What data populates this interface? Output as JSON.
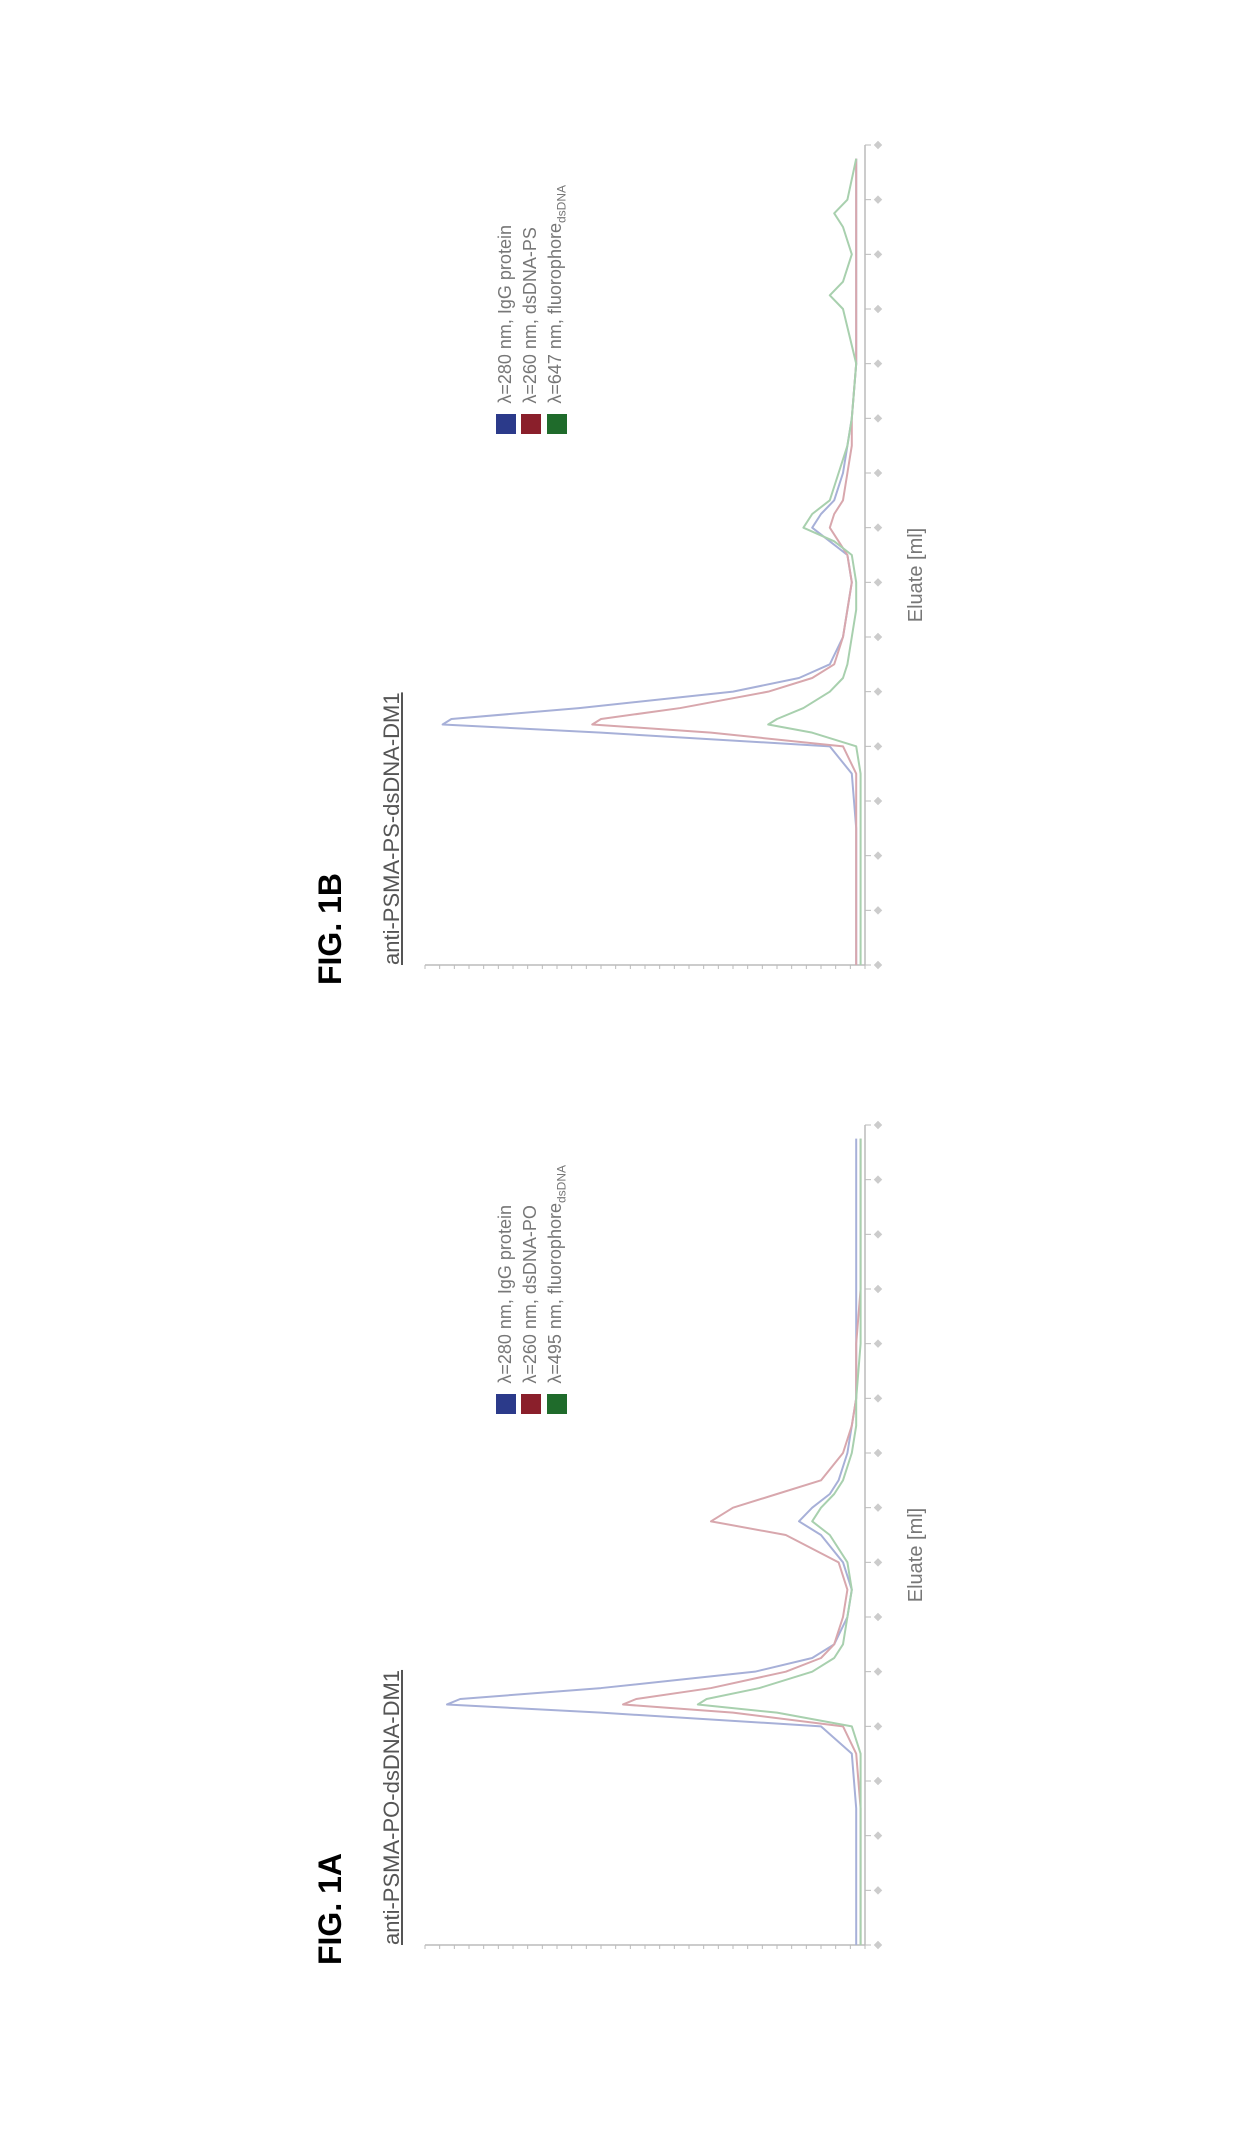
{
  "panelA": {
    "fig_label": "FIG. 1A",
    "title": "anti-PSMA-PO-dsDNA-DM1",
    "x_label": "Eluate [ml]",
    "legend": [
      {
        "color": "#2b3a8a",
        "label_prefix": "λ=280 nm, ",
        "label_tail": "IgG protein"
      },
      {
        "color": "#8a1f2b",
        "label_prefix": "λ=260 nm, ",
        "label_tail": "dsDNA-PO"
      },
      {
        "color": "#1f6b2b",
        "label_prefix": "λ=495 nm, ",
        "label_tail": "fluorophore",
        "label_sub": "dsDNA"
      }
    ],
    "chart": {
      "x_domain": [
        0,
        30
      ],
      "y_domain": [
        0,
        100
      ],
      "x_ticks": [
        0,
        2,
        4,
        6,
        8,
        10,
        12,
        14,
        16,
        18,
        20,
        22,
        24,
        26,
        28,
        30
      ],
      "series": [
        {
          "color": "#a7b0d8",
          "points": [
            [
              0,
              2
            ],
            [
              5,
              2
            ],
            [
              7,
              3
            ],
            [
              8,
              10
            ],
            [
              8.5,
              60
            ],
            [
              8.8,
              95
            ],
            [
              9,
              92
            ],
            [
              9.4,
              60
            ],
            [
              10,
              25
            ],
            [
              10.5,
              12
            ],
            [
              11,
              7
            ],
            [
              12,
              4
            ],
            [
              13,
              3
            ],
            [
              14,
              5
            ],
            [
              15,
              10
            ],
            [
              15.5,
              15
            ],
            [
              16,
              12
            ],
            [
              16.5,
              8
            ],
            [
              17,
              6
            ],
            [
              18,
              4
            ],
            [
              19,
              3
            ],
            [
              20,
              2
            ],
            [
              22,
              2
            ],
            [
              24,
              2
            ],
            [
              26,
              2
            ],
            [
              28,
              2
            ],
            [
              29.5,
              2
            ]
          ]
        },
        {
          "color": "#d8a7ad",
          "points": [
            [
              0,
              1
            ],
            [
              5,
              1
            ],
            [
              7,
              2
            ],
            [
              8,
              5
            ],
            [
              8.5,
              30
            ],
            [
              8.8,
              55
            ],
            [
              9,
              52
            ],
            [
              9.4,
              35
            ],
            [
              10,
              18
            ],
            [
              10.5,
              10
            ],
            [
              11,
              7
            ],
            [
              12,
              5
            ],
            [
              13,
              4
            ],
            [
              14,
              6
            ],
            [
              15,
              18
            ],
            [
              15.5,
              35
            ],
            [
              16,
              30
            ],
            [
              16.5,
              20
            ],
            [
              17,
              10
            ],
            [
              18,
              5
            ],
            [
              19,
              3
            ],
            [
              20,
              2
            ],
            [
              22,
              2
            ],
            [
              24,
              1
            ],
            [
              26,
              1
            ],
            [
              28,
              1
            ],
            [
              29.5,
              1
            ]
          ]
        },
        {
          "color": "#a8d0ae",
          "points": [
            [
              0,
              1
            ],
            [
              5,
              1
            ],
            [
              7,
              1
            ],
            [
              8,
              3
            ],
            [
              8.5,
              20
            ],
            [
              8.8,
              38
            ],
            [
              9,
              36
            ],
            [
              9.4,
              24
            ],
            [
              10,
              12
            ],
            [
              10.5,
              7
            ],
            [
              11,
              5
            ],
            [
              12,
              4
            ],
            [
              13,
              3
            ],
            [
              14,
              4
            ],
            [
              15,
              8
            ],
            [
              15.5,
              12
            ],
            [
              16,
              10
            ],
            [
              16.5,
              7
            ],
            [
              17,
              5
            ],
            [
              18,
              3
            ],
            [
              19,
              2
            ],
            [
              20,
              2
            ],
            [
              22,
              1
            ],
            [
              24,
              1
            ],
            [
              26,
              1
            ],
            [
              28,
              1
            ],
            [
              29.5,
              1
            ]
          ]
        }
      ]
    }
  },
  "panelB": {
    "fig_label": "FIG. 1B",
    "title": "anti-PSMA-PS-dsDNA-DM1",
    "x_label": "Eluate [ml]",
    "legend": [
      {
        "color": "#2b3a8a",
        "label_prefix": "λ=280 nm, ",
        "label_tail": "IgG protein"
      },
      {
        "color": "#8a1f2b",
        "label_prefix": "λ=260 nm, ",
        "label_tail": "dsDNA-PS"
      },
      {
        "color": "#1f6b2b",
        "label_prefix": "λ=647 nm, ",
        "label_tail": "fluorophore",
        "label_sub": "dsDNA"
      }
    ],
    "chart": {
      "x_domain": [
        0,
        30
      ],
      "y_domain": [
        0,
        100
      ],
      "x_ticks": [
        0,
        2,
        4,
        6,
        8,
        10,
        12,
        14,
        16,
        18,
        20,
        22,
        24,
        26,
        28,
        30
      ],
      "series": [
        {
          "color": "#a7b0d8",
          "points": [
            [
              0,
              2
            ],
            [
              5,
              2
            ],
            [
              7,
              3
            ],
            [
              8,
              8
            ],
            [
              8.5,
              60
            ],
            [
              8.8,
              96
            ],
            [
              9,
              94
            ],
            [
              9.4,
              65
            ],
            [
              10,
              30
            ],
            [
              10.5,
              15
            ],
            [
              11,
              8
            ],
            [
              12,
              5
            ],
            [
              13,
              4
            ],
            [
              14,
              3
            ],
            [
              15,
              4
            ],
            [
              15.5,
              8
            ],
            [
              16,
              12
            ],
            [
              16.5,
              10
            ],
            [
              17,
              7
            ],
            [
              18,
              5
            ],
            [
              19,
              4
            ],
            [
              20,
              3
            ],
            [
              22,
              2
            ],
            [
              24,
              2
            ],
            [
              26,
              2
            ],
            [
              28,
              2
            ],
            [
              29.5,
              2
            ]
          ]
        },
        {
          "color": "#d8a7ad",
          "points": [
            [
              0,
              2
            ],
            [
              5,
              2
            ],
            [
              7,
              2
            ],
            [
              8,
              5
            ],
            [
              8.5,
              35
            ],
            [
              8.8,
              62
            ],
            [
              9,
              60
            ],
            [
              9.4,
              42
            ],
            [
              10,
              22
            ],
            [
              10.5,
              12
            ],
            [
              11,
              7
            ],
            [
              12,
              5
            ],
            [
              13,
              4
            ],
            [
              14,
              3
            ],
            [
              15,
              4
            ],
            [
              15.5,
              6
            ],
            [
              16,
              8
            ],
            [
              16.5,
              7
            ],
            [
              17,
              5
            ],
            [
              18,
              4
            ],
            [
              19,
              3
            ],
            [
              20,
              3
            ],
            [
              22,
              2
            ],
            [
              24,
              2
            ],
            [
              26,
              2
            ],
            [
              28,
              2
            ],
            [
              29.5,
              2
            ]
          ]
        },
        {
          "color": "#a8d0ae",
          "points": [
            [
              0,
              1
            ],
            [
              5,
              1
            ],
            [
              7,
              1
            ],
            [
              8,
              2
            ],
            [
              8.5,
              12
            ],
            [
              8.8,
              22
            ],
            [
              9,
              20
            ],
            [
              9.4,
              14
            ],
            [
              10,
              8
            ],
            [
              10.5,
              5
            ],
            [
              11,
              4
            ],
            [
              12,
              3
            ],
            [
              13,
              2
            ],
            [
              14,
              2
            ],
            [
              15,
              3
            ],
            [
              15.5,
              7
            ],
            [
              16,
              14
            ],
            [
              16.5,
              12
            ],
            [
              17,
              8
            ],
            [
              18,
              6
            ],
            [
              19,
              4
            ],
            [
              20,
              3
            ],
            [
              22,
              2
            ],
            [
              24,
              5
            ],
            [
              24.5,
              8
            ],
            [
              25,
              5
            ],
            [
              26,
              3
            ],
            [
              27,
              5
            ],
            [
              27.5,
              7
            ],
            [
              28,
              4
            ],
            [
              29.5,
              2
            ]
          ]
        }
      ]
    }
  },
  "colors": {
    "axis": "#bbbbbb",
    "tick_bg": "#f4f4f4"
  }
}
